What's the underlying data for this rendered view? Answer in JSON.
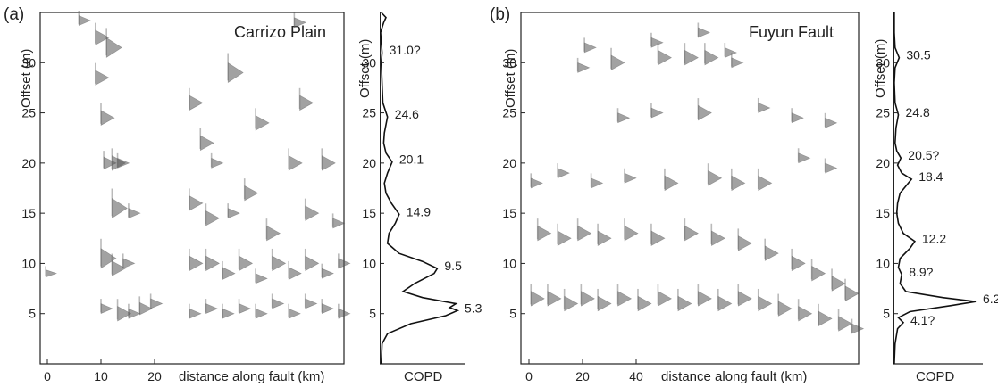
{
  "chart_data": [
    {
      "panel_label": "(a)",
      "title": "Carrizo Plain",
      "type": "scatter",
      "xlabel": "distance along fault (km)",
      "ylabel": "Offset (m)",
      "xticks": [
        "0",
        "10",
        "20"
      ],
      "yticks": [
        "5",
        "10",
        "15",
        "20",
        "25",
        "30"
      ],
      "xlim": [
        -1,
        54
      ],
      "ylim": [
        0,
        35
      ],
      "points": [
        {
          "x": 6,
          "y": 34.2,
          "len": 2
        },
        {
          "x": 9,
          "y": 32.5,
          "len": 3
        },
        {
          "x": 11,
          "y": 31.5,
          "len": 4
        },
        {
          "x": 9,
          "y": 28.5,
          "len": 3
        },
        {
          "x": 10,
          "y": 24.5,
          "len": 3
        },
        {
          "x": 10.5,
          "y": 20,
          "len": 2.5
        },
        {
          "x": 12,
          "y": 20,
          "len": 3
        },
        {
          "x": 13,
          "y": 20,
          "len": 2
        },
        {
          "x": 12,
          "y": 15.5,
          "len": 4
        },
        {
          "x": 15,
          "y": 15,
          "len": 2
        },
        {
          "x": 10,
          "y": 10.5,
          "len": 4
        },
        {
          "x": 12,
          "y": 9.5,
          "len": 3
        },
        {
          "x": 14,
          "y": 10,
          "len": 2
        },
        {
          "x": 0,
          "y": 9,
          "len": 1.5
        },
        {
          "x": 10,
          "y": 5.5,
          "len": 2
        },
        {
          "x": 13,
          "y": 5,
          "len": 3
        },
        {
          "x": 15,
          "y": 5,
          "len": 2
        },
        {
          "x": 17,
          "y": 5.5,
          "len": 2.5
        },
        {
          "x": 19,
          "y": 6,
          "len": 2
        },
        {
          "x": 26,
          "y": 26,
          "len": 3
        },
        {
          "x": 28,
          "y": 22,
          "len": 3
        },
        {
          "x": 30,
          "y": 20,
          "len": 2
        },
        {
          "x": 26,
          "y": 16,
          "len": 3
        },
        {
          "x": 29,
          "y": 14.5,
          "len": 3
        },
        {
          "x": 33,
          "y": 15,
          "len": 2
        },
        {
          "x": 36,
          "y": 17,
          "len": 3
        },
        {
          "x": 38,
          "y": 24,
          "len": 3
        },
        {
          "x": 40,
          "y": 13,
          "len": 3
        },
        {
          "x": 44,
          "y": 20,
          "len": 3
        },
        {
          "x": 47,
          "y": 15,
          "len": 3
        },
        {
          "x": 50,
          "y": 20,
          "len": 3
        },
        {
          "x": 52,
          "y": 14,
          "len": 2
        },
        {
          "x": 26,
          "y": 10,
          "len": 3
        },
        {
          "x": 29,
          "y": 10,
          "len": 3
        },
        {
          "x": 32,
          "y": 9,
          "len": 2.5
        },
        {
          "x": 35,
          "y": 10,
          "len": 3
        },
        {
          "x": 38,
          "y": 8.5,
          "len": 2
        },
        {
          "x": 41,
          "y": 10,
          "len": 3
        },
        {
          "x": 44,
          "y": 9,
          "len": 2.5
        },
        {
          "x": 47,
          "y": 10,
          "len": 3
        },
        {
          "x": 50,
          "y": 9,
          "len": 2
        },
        {
          "x": 53,
          "y": 10,
          "len": 2
        },
        {
          "x": 26,
          "y": 5,
          "len": 2
        },
        {
          "x": 29,
          "y": 5.5,
          "len": 2
        },
        {
          "x": 32,
          "y": 5,
          "len": 2
        },
        {
          "x": 35,
          "y": 5.5,
          "len": 2
        },
        {
          "x": 38,
          "y": 5,
          "len": 2
        },
        {
          "x": 41,
          "y": 6,
          "len": 2
        },
        {
          "x": 44,
          "y": 5,
          "len": 2
        },
        {
          "x": 47,
          "y": 6,
          "len": 2
        },
        {
          "x": 50,
          "y": 5.5,
          "len": 2
        },
        {
          "x": 53,
          "y": 5,
          "len": 2
        },
        {
          "x": 33,
          "y": 29,
          "len": 4
        },
        {
          "x": 46,
          "y": 26,
          "len": 3
        },
        {
          "x": 45,
          "y": 34,
          "len": 2
        }
      ],
      "copd": {
        "label": "COPD",
        "yticks": [
          "5",
          "10",
          "15",
          "20",
          "25",
          "30"
        ],
        "peaks": [
          "5.3",
          "9.5",
          "14.9",
          "20.1",
          "24.6",
          "31.0?"
        ],
        "curve": [
          [
            0,
            0.02
          ],
          [
            2,
            0.03
          ],
          [
            3,
            0.1
          ],
          [
            4,
            0.4
          ],
          [
            4.8,
            0.85
          ],
          [
            5.3,
            1.0
          ],
          [
            5.6,
            0.9
          ],
          [
            6,
            0.98
          ],
          [
            6.6,
            0.55
          ],
          [
            7.2,
            0.3
          ],
          [
            8,
            0.45
          ],
          [
            9,
            0.7
          ],
          [
            9.5,
            0.74
          ],
          [
            10.2,
            0.55
          ],
          [
            11,
            0.25
          ],
          [
            12,
            0.1
          ],
          [
            13,
            0.12
          ],
          [
            14,
            0.2
          ],
          [
            14.9,
            0.25
          ],
          [
            16,
            0.15
          ],
          [
            17,
            0.08
          ],
          [
            18,
            0.06
          ],
          [
            19,
            0.1
          ],
          [
            20.1,
            0.16
          ],
          [
            21,
            0.08
          ],
          [
            22,
            0.05
          ],
          [
            23,
            0.06
          ],
          [
            24.6,
            0.1
          ],
          [
            26,
            0.04
          ],
          [
            28,
            0.03
          ],
          [
            30,
            0.02
          ],
          [
            31,
            0.03
          ],
          [
            32,
            0.02
          ],
          [
            33,
            0.01
          ],
          [
            34,
            0.05
          ],
          [
            34.5,
            0.08
          ],
          [
            35,
            0.02
          ]
        ]
      }
    },
    {
      "panel_label": "(b)",
      "title": "Fuyun Fault",
      "type": "scatter",
      "xlabel": "distance along fault (km)",
      "ylabel": "Offset (m)",
      "xticks": [
        "0",
        "20",
        "40"
      ],
      "yticks": [
        "5",
        "10",
        "15",
        "20",
        "25",
        "30"
      ],
      "xlim": [
        -1,
        100
      ],
      "ylim": [
        0,
        35
      ],
      "points": [
        {
          "x": 18,
          "y": 31.5,
          "len": 2
        },
        {
          "x": 38,
          "y": 32,
          "len": 2
        },
        {
          "x": 52,
          "y": 33,
          "len": 2
        },
        {
          "x": 60,
          "y": 31,
          "len": 2
        },
        {
          "x": 40,
          "y": 30.5,
          "len": 3
        },
        {
          "x": 48,
          "y": 30.5,
          "len": 3
        },
        {
          "x": 54,
          "y": 30.5,
          "len": 3
        },
        {
          "x": 62,
          "y": 30,
          "len": 2
        },
        {
          "x": 16,
          "y": 29.5,
          "len": 2
        },
        {
          "x": 26,
          "y": 30,
          "len": 3
        },
        {
          "x": 38,
          "y": 25,
          "len": 2
        },
        {
          "x": 52,
          "y": 25,
          "len": 3
        },
        {
          "x": 28,
          "y": 24.5,
          "len": 2
        },
        {
          "x": 70,
          "y": 25.5,
          "len": 2
        },
        {
          "x": 80,
          "y": 24.5,
          "len": 2
        },
        {
          "x": 90,
          "y": 24,
          "len": 2
        },
        {
          "x": 2,
          "y": 18,
          "len": 2
        },
        {
          "x": 10,
          "y": 19,
          "len": 2
        },
        {
          "x": 20,
          "y": 18,
          "len": 2
        },
        {
          "x": 30,
          "y": 18.5,
          "len": 2
        },
        {
          "x": 42,
          "y": 18,
          "len": 3
        },
        {
          "x": 55,
          "y": 18.5,
          "len": 3
        },
        {
          "x": 62,
          "y": 18,
          "len": 3
        },
        {
          "x": 70,
          "y": 18,
          "len": 3
        },
        {
          "x": 82,
          "y": 20.5,
          "len": 2
        },
        {
          "x": 90,
          "y": 19.5,
          "len": 2
        },
        {
          "x": 4,
          "y": 13,
          "len": 3
        },
        {
          "x": 10,
          "y": 12.5,
          "len": 3
        },
        {
          "x": 16,
          "y": 13,
          "len": 3
        },
        {
          "x": 22,
          "y": 12.5,
          "len": 3
        },
        {
          "x": 30,
          "y": 13,
          "len": 3
        },
        {
          "x": 38,
          "y": 12.5,
          "len": 3
        },
        {
          "x": 48,
          "y": 13,
          "len": 3
        },
        {
          "x": 56,
          "y": 12.5,
          "len": 3
        },
        {
          "x": 64,
          "y": 12,
          "len": 3
        },
        {
          "x": 72,
          "y": 11,
          "len": 3
        },
        {
          "x": 80,
          "y": 10,
          "len": 3
        },
        {
          "x": 86,
          "y": 9,
          "len": 3
        },
        {
          "x": 92,
          "y": 8,
          "len": 3
        },
        {
          "x": 96,
          "y": 7,
          "len": 3
        },
        {
          "x": 2,
          "y": 6.5,
          "len": 3
        },
        {
          "x": 7,
          "y": 6.5,
          "len": 3
        },
        {
          "x": 12,
          "y": 6,
          "len": 3
        },
        {
          "x": 17,
          "y": 6.5,
          "len": 3
        },
        {
          "x": 22,
          "y": 6,
          "len": 3
        },
        {
          "x": 28,
          "y": 6.5,
          "len": 3
        },
        {
          "x": 34,
          "y": 6,
          "len": 3
        },
        {
          "x": 40,
          "y": 6.5,
          "len": 3
        },
        {
          "x": 46,
          "y": 6,
          "len": 3
        },
        {
          "x": 52,
          "y": 6.5,
          "len": 3
        },
        {
          "x": 58,
          "y": 6,
          "len": 3
        },
        {
          "x": 64,
          "y": 6.5,
          "len": 3
        },
        {
          "x": 70,
          "y": 6,
          "len": 3
        },
        {
          "x": 76,
          "y": 5.5,
          "len": 3
        },
        {
          "x": 82,
          "y": 5,
          "len": 3
        },
        {
          "x": 88,
          "y": 4.5,
          "len": 3
        },
        {
          "x": 94,
          "y": 4,
          "len": 3
        },
        {
          "x": 98,
          "y": 3.5,
          "len": 2
        }
      ],
      "copd": {
        "label": "COPD",
        "yticks": [
          "5",
          "10",
          "15",
          "20",
          "25",
          "30"
        ],
        "peaks": [
          "4.1?",
          "6.2",
          "8.9?",
          "12.2",
          "18.4",
          "20.5?",
          "24.8",
          "30.5"
        ],
        "curve": [
          [
            0,
            0.01
          ],
          [
            2,
            0.02
          ],
          [
            3.5,
            0.05
          ],
          [
            4.1,
            0.12
          ],
          [
            4.6,
            0.06
          ],
          [
            5.2,
            0.2
          ],
          [
            5.8,
            0.7
          ],
          [
            6.2,
            1.0
          ],
          [
            6.6,
            0.6
          ],
          [
            7.2,
            0.15
          ],
          [
            8,
            0.08
          ],
          [
            8.9,
            0.1
          ],
          [
            9.6,
            0.06
          ],
          [
            10.5,
            0.08
          ],
          [
            11.5,
            0.2
          ],
          [
            12.2,
            0.26
          ],
          [
            13,
            0.12
          ],
          [
            14,
            0.06
          ],
          [
            15,
            0.04
          ],
          [
            16,
            0.05
          ],
          [
            17,
            0.08
          ],
          [
            18,
            0.18
          ],
          [
            18.4,
            0.22
          ],
          [
            19,
            0.1
          ],
          [
            19.8,
            0.05
          ],
          [
            20.5,
            0.09
          ],
          [
            21.2,
            0.04
          ],
          [
            22,
            0.02
          ],
          [
            23.5,
            0.03
          ],
          [
            24.8,
            0.06
          ],
          [
            26,
            0.02
          ],
          [
            28,
            0.01
          ],
          [
            29.5,
            0.02
          ],
          [
            30.5,
            0.07
          ],
          [
            31.5,
            0.02
          ],
          [
            33,
            0.01
          ],
          [
            35,
            0.01
          ]
        ]
      }
    }
  ]
}
